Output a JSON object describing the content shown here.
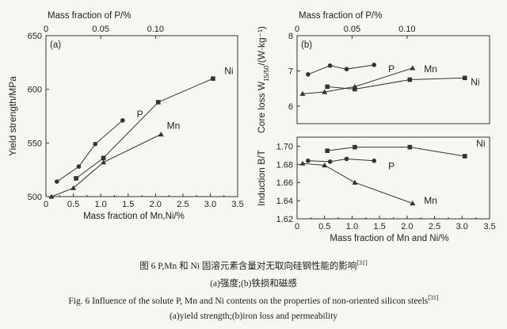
{
  "caption": {
    "cn_title": "图 6   P,Mn 和 Ni 固溶元素含量对无取向硅钢性能的影响",
    "cn_ref": "[31]",
    "cn_sub": "(a)强度;(b)铁损和磁感",
    "en_title": "Fig. 6   Influence of the solute P, Mn and Ni contents on the properties of non-oriented silicon steels",
    "en_ref": "[31]",
    "en_sub": "(a)yield strength;(b)iron loss and permeability"
  },
  "chart_data": [
    {
      "type": "line",
      "panel": "(a)",
      "ylabel": "Yield strength/MPa",
      "xlabel": "Mass fraction of Mn,Ni/%",
      "x2label": "Mass fraction of P/%",
      "xlim": [
        0,
        3.5
      ],
      "ylim": [
        500,
        650
      ],
      "x_ticks": [
        "0",
        "0.5",
        "1.0",
        "1.5",
        "2.0",
        "2.5",
        "3.0",
        "3.5"
      ],
      "y_ticks": [
        "500",
        "550",
        "600",
        "650"
      ],
      "x2_ticks": [
        "0",
        "0.05",
        "0.10"
      ],
      "x2_tick_values": [
        0,
        0.05,
        0.1
      ],
      "series": [
        {
          "name": "P",
          "axis": "top",
          "marker": "circle",
          "x": [
            0.01,
            0.03,
            0.045,
            0.07
          ],
          "y": [
            514,
            528,
            549,
            571
          ]
        },
        {
          "name": "Mn",
          "axis": "bottom",
          "marker": "triangle",
          "x": [
            0.1,
            0.5,
            1.05,
            2.1
          ],
          "y": [
            500,
            508,
            532,
            558
          ]
        },
        {
          "name": "Ni",
          "axis": "bottom",
          "marker": "square",
          "x": [
            0.55,
            1.05,
            2.05,
            3.05
          ],
          "y": [
            517,
            536,
            588,
            610
          ]
        }
      ]
    },
    {
      "type": "line",
      "panel": "(b)",
      "ylabel": "Core loss W15/50/(W·kg⁻¹)",
      "x2label": "Mass fraction of P/%",
      "xlim": [
        0,
        3.5
      ],
      "ylim": [
        5.5,
        8.0
      ],
      "y_ticks": [
        "6",
        "7",
        "8"
      ],
      "x2_ticks": [
        "0",
        "0.05",
        "0.10"
      ],
      "x2_tick_values": [
        0,
        0.05,
        0.1
      ],
      "series": [
        {
          "name": "P",
          "axis": "top",
          "marker": "circle",
          "x": [
            0.01,
            0.03,
            0.045,
            0.07
          ],
          "y": [
            6.9,
            7.15,
            7.05,
            7.17
          ]
        },
        {
          "name": "Mn",
          "axis": "bottom",
          "marker": "triangle",
          "x": [
            0.1,
            0.5,
            1.05,
            2.1
          ],
          "y": [
            6.35,
            6.4,
            6.55,
            7.08
          ]
        },
        {
          "name": "Ni",
          "axis": "bottom",
          "marker": "square",
          "x": [
            0.55,
            1.05,
            2.05,
            3.05
          ],
          "y": [
            6.55,
            6.48,
            6.75,
            6.8
          ]
        }
      ]
    },
    {
      "type": "line",
      "panel": "(b)",
      "ylabel": "Induction B/T",
      "xlabel": "Mass fraction of Mn and Ni/%",
      "xlim": [
        0,
        3.5
      ],
      "ylim": [
        1.62,
        1.71
      ],
      "x_ticks": [
        "0",
        "0.5",
        "1.0",
        "1.5",
        "2.0",
        "2.5",
        "3.0",
        "3.5"
      ],
      "y_ticks": [
        "1.62",
        "1.64",
        "1.66",
        "1.68",
        "1.70"
      ],
      "series": [
        {
          "name": "P",
          "axis": "top",
          "marker": "circle",
          "x": [
            0.01,
            0.03,
            0.045,
            0.07
          ],
          "y": [
            1.684,
            1.683,
            1.686,
            1.684
          ]
        },
        {
          "name": "Mn",
          "axis": "bottom",
          "marker": "triangle",
          "x": [
            0.1,
            0.5,
            1.05,
            2.1
          ],
          "y": [
            1.681,
            1.679,
            1.66,
            1.637
          ]
        },
        {
          "name": "Ni",
          "axis": "bottom",
          "marker": "square",
          "x": [
            0.55,
            1.05,
            2.05,
            3.05
          ],
          "y": [
            1.695,
            1.699,
            1.699,
            1.689
          ]
        }
      ]
    }
  ]
}
